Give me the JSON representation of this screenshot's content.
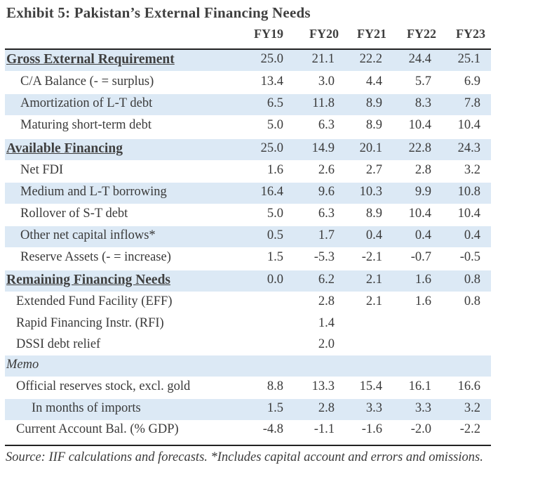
{
  "exhibit": {
    "title": "Exhibit 5: Pakistan’s External Financing Needs",
    "columns": [
      "FY19",
      "FY20",
      "FY21",
      "FY22",
      "FY23"
    ],
    "rows": [
      {
        "label": "Gross External Requirement",
        "style": "section",
        "values": [
          "25.0",
          "21.1",
          "22.2",
          "24.4",
          "25.1"
        ]
      },
      {
        "label": "C/A Balance (- = surplus)",
        "style": "ind1",
        "values": [
          "13.4",
          "3.0",
          "4.4",
          "5.7",
          "6.9"
        ]
      },
      {
        "label": "Amortization of L-T debt",
        "style": "ind1",
        "values": [
          "6.5",
          "11.8",
          "8.9",
          "8.3",
          "7.8"
        ]
      },
      {
        "label": "Maturing short-term debt",
        "style": "ind1",
        "values": [
          "5.0",
          "6.3",
          "8.9",
          "10.4",
          "10.4"
        ]
      },
      {
        "label": "Available Financing",
        "style": "section",
        "values": [
          "25.0",
          "14.9",
          "20.1",
          "22.8",
          "24.3"
        ]
      },
      {
        "label": "Net FDI",
        "style": "ind1",
        "values": [
          "1.6",
          "2.6",
          "2.7",
          "2.8",
          "3.2"
        ]
      },
      {
        "label": "Medium and L-T borrowing",
        "style": "ind1",
        "values": [
          "16.4",
          "9.6",
          "10.3",
          "9.9",
          "10.8"
        ]
      },
      {
        "label": "Rollover of S-T debt",
        "style": "ind1",
        "values": [
          "5.0",
          "6.3",
          "8.9",
          "10.4",
          "10.4"
        ]
      },
      {
        "label": "Other net capital inflows*",
        "style": "ind1",
        "values": [
          "0.5",
          "1.7",
          "0.4",
          "0.4",
          "0.4"
        ]
      },
      {
        "label": "Reserve Assets (- = increase)",
        "style": "ind1",
        "values": [
          "1.5",
          "-5.3",
          "-2.1",
          "-0.7",
          "-0.5"
        ]
      },
      {
        "label": "Remaining Financing Needs",
        "style": "section",
        "values": [
          "0.0",
          "6.2",
          "2.1",
          "1.6",
          "0.8"
        ]
      },
      {
        "label": "Extended Fund Facility (EFF)",
        "style": "ind0",
        "values": [
          "",
          "2.8",
          "2.1",
          "1.6",
          "0.8"
        ]
      },
      {
        "label": "Rapid Financing Instr. (RFI)",
        "style": "ind0",
        "values": [
          "",
          "1.4",
          "",
          "",
          ""
        ]
      },
      {
        "label": "DSSI debt relief",
        "style": "ind0",
        "values": [
          "",
          "2.0",
          "",
          "",
          ""
        ]
      },
      {
        "label": "Memo",
        "style": "memo",
        "values": [
          "",
          "",
          "",
          "",
          ""
        ]
      },
      {
        "label": "Official reserves stock, excl. gold",
        "style": "ind0",
        "values": [
          "8.8",
          "13.3",
          "15.4",
          "16.1",
          "16.6"
        ]
      },
      {
        "label": "In months of imports",
        "style": "ind2",
        "values": [
          "1.5",
          "2.8",
          "3.3",
          "3.3",
          "3.2"
        ]
      },
      {
        "label": "Current Account Bal. (% GDP)",
        "style": "ind0",
        "values": [
          "-4.8",
          "-1.1",
          "-1.6",
          "-2.0",
          "-2.2"
        ]
      }
    ],
    "source": "Source: IIF calculations and forecasts. *Includes capital account and errors and omissions."
  },
  "colors": {
    "row_shade": "#dce9f5",
    "text": "#3a3a3a",
    "rule": "#222222"
  }
}
